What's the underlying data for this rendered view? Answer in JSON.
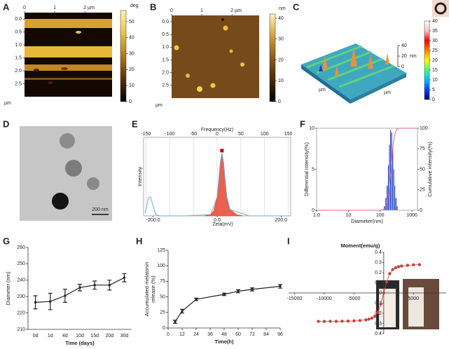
{
  "afm": [
    {
      "panel": "A",
      "xlim": [
        0,
        2.9
      ],
      "ylim": [
        -0.25,
        3.0
      ],
      "xticks": [
        0,
        1,
        {
          "value": 2,
          "label": "2 µm"
        }
      ],
      "yticks": [
        {
          "value": 0,
          "label": "0.0"
        },
        0.5,
        {
          "value": 1,
          "label": "1.0"
        },
        1.5,
        {
          "value": 2,
          "label": "2.0"
        },
        2.5
      ],
      "y_unit": "µm",
      "colorbar": {
        "label": "deg",
        "lim": [
          0,
          57
        ],
        "ticks": [
          0,
          10,
          20,
          30,
          40,
          50
        ],
        "colors": [
          "#000000",
          "#5a3008",
          "#b07818",
          "#e8c040",
          "#fff4b0"
        ]
      }
    },
    {
      "panel": "B",
      "xlim": [
        0,
        2.9
      ],
      "ylim": [
        -0.25,
        3.0
      ],
      "xticks": [
        0,
        1,
        {
          "value": 2,
          "label": "2 µm"
        }
      ],
      "yticks": [
        {
          "value": 0,
          "label": "0.0"
        },
        0.5,
        {
          "value": 1,
          "label": "1.0"
        },
        1.5,
        {
          "value": 2,
          "label": "2.0"
        },
        2.5
      ],
      "y_unit": "µm",
      "colorbar": {
        "label": "nm",
        "lim": [
          0,
          42
        ],
        "ticks": [
          0,
          10,
          20,
          30,
          40
        ],
        "colors": [
          "#000000",
          "#4a2a0a",
          "#8a5a20",
          "#d0a040",
          "#fff4c0"
        ]
      }
    }
  ],
  "surface": {
    "panel": "C",
    "xy_label": "µm",
    "z_label": "nm",
    "z_ticks": [
      0,
      20,
      40
    ],
    "z_lim": [
      0,
      40
    ],
    "colorbar": {
      "lim": [
        0,
        40
      ],
      "ticks": [
        0,
        5,
        10,
        15,
        20,
        25,
        30,
        35,
        40
      ],
      "colors": [
        "#000080",
        "#0040ff",
        "#00c0ff",
        "#40ff80",
        "#ffff00",
        "#ff8000",
        "#ff0000",
        "#ffc0c0",
        "#ffffff"
      ]
    }
  },
  "tem": {
    "panel": "D",
    "scale_bar": "200 nm"
  },
  "chart_data": [
    {
      "type": "area",
      "panel": "E",
      "x2label": "Frequency(Hz)",
      "xlabel": "Zeta(mV)",
      "ylabel": "Intensity",
      "xlim": [
        -230,
        230
      ],
      "xticks": [
        {
          "value": -200,
          "label": "-200.0"
        },
        {
          "value": 0,
          "label": "0.0"
        },
        {
          "value": 200,
          "label": "200.0"
        }
      ],
      "x2lim": [
        -155,
        155
      ],
      "x2ticks": [
        -150,
        -100,
        -50,
        0,
        50,
        100,
        150
      ],
      "ylim": [
        0,
        1.25
      ],
      "grid": true,
      "series": [
        {
          "color": "#e8503a",
          "fill": true,
          "x": [
            -40,
            -20,
            -10,
            0,
            5,
            10,
            15,
            20,
            25,
            30,
            40,
            60,
            80
          ],
          "values": [
            0,
            0.02,
            0.08,
            0.3,
            0.55,
            0.85,
            1.0,
            0.85,
            0.55,
            0.3,
            0.1,
            0.02,
            0
          ]
        },
        {
          "color": "#6fa8dc",
          "fill": false,
          "x": [
            -225,
            -215,
            -208,
            -200,
            -192,
            -180,
            -100,
            -20,
            0,
            10,
            15,
            20,
            30,
            40,
            100,
            225
          ],
          "values": [
            0.05,
            0.28,
            0.3,
            0.15,
            0.02,
            0,
            0,
            0.02,
            0.3,
            0.85,
            1.0,
            0.85,
            0.3,
            0.1,
            0,
            0
          ]
        }
      ]
    },
    {
      "type": "histogram",
      "panel": "F",
      "xlabel": "Diameter(nm)",
      "ylabel": "Differential intensity(%)",
      "y2label": "Cumulative intensity(%)",
      "xlog": true,
      "xlim": [
        1,
        1500
      ],
      "xticks": [
        {
          "value": 1,
          "label": "1.0"
        },
        10,
        100,
        1000
      ],
      "ylim": [
        0,
        10
      ],
      "yticks": [
        0,
        5,
        10
      ],
      "y2lim": [
        0,
        100
      ],
      "y2ticks": [
        0,
        25,
        50,
        75,
        100
      ],
      "bins": [
        130,
        145,
        160,
        175,
        190,
        205,
        220,
        240,
        260,
        280,
        300,
        330,
        360
      ],
      "counts": [
        0.5,
        1.5,
        3,
        5.5,
        8,
        9.8,
        9.5,
        7.5,
        5,
        3,
        1.5,
        0.5
      ],
      "color": "#3050c8",
      "y2color": "#3a8fd0",
      "series": [
        {
          "color": "#e060a0",
          "axis": "y2",
          "x": [
            1,
            100,
            130,
            160,
            190,
            220,
            260,
            300,
            340,
            400,
            1500
          ],
          "values": [
            0,
            0,
            1,
            7,
            22,
            50,
            82,
            95,
            99,
            100,
            100
          ]
        }
      ]
    },
    {
      "type": "errorbar",
      "panel": "G",
      "xlabel": "Time (days)",
      "ylabel": "Diameter (nm)",
      "categories": [
        "0d",
        "1d",
        "4d",
        "10d",
        "15d",
        "20d",
        "30d"
      ],
      "values": [
        226.5,
        227,
        230.5,
        235.5,
        237,
        237,
        241.5
      ],
      "errors": [
        4,
        5,
        4,
        2,
        2.5,
        3,
        2.5
      ],
      "ylim": [
        210,
        260
      ],
      "yticks": [
        210,
        220,
        230,
        240,
        250,
        260
      ],
      "color": "#222222"
    },
    {
      "type": "errorbar",
      "panel": "H",
      "xlabel": "Time(h)",
      "ylabel": [
        "Accumulated melatonin",
        "release (%)"
      ],
      "x": [
        6,
        12,
        24,
        48,
        60,
        72,
        96
      ],
      "values": [
        10,
        27,
        46,
        54,
        59,
        62,
        67
      ],
      "errors": [
        2.5,
        3,
        2,
        2,
        2.5,
        2.5,
        3
      ],
      "xlim": [
        0,
        96
      ],
      "xticks": [
        0,
        12,
        24,
        36,
        48,
        60,
        72,
        84,
        96
      ],
      "ylim": [
        0,
        125
      ],
      "yticks": [
        0,
        25,
        50,
        75,
        100,
        125
      ],
      "color": "#222222"
    },
    {
      "type": "scatter",
      "panel": "I",
      "title": "Moment(emu/g)",
      "xlim": [
        -16000,
        10500
      ],
      "xticks": [
        -15000,
        -10000,
        -5000,
        5000
      ],
      "ylim": [
        -0.4,
        0.4
      ],
      "yticks": [
        0.4,
        0.3,
        0.2,
        0.1,
        0,
        {
          "value": -0.1,
          "label": "0.1"
        },
        {
          "value": -0.2,
          "label": "0.2"
        },
        {
          "value": -0.3,
          "label": "0.3"
        },
        {
          "value": -0.4,
          "label": "0.4"
        }
      ],
      "color": "#c9403a",
      "x": [
        -11000,
        -10000,
        -9000,
        -8000,
        -7000,
        -6000,
        -5000,
        -4000,
        -3000,
        -2500,
        -2000,
        -1500,
        -1000,
        -500,
        0,
        500,
        1000,
        1500,
        2000,
        2500,
        3000,
        4000,
        5000,
        6000
      ],
      "values": [
        -0.28,
        -0.28,
        -0.279,
        -0.279,
        -0.278,
        -0.277,
        -0.275,
        -0.272,
        -0.265,
        -0.258,
        -0.248,
        -0.23,
        -0.19,
        -0.11,
        0,
        0.11,
        0.19,
        0.23,
        0.248,
        0.258,
        0.265,
        0.272,
        0.276,
        0.278
      ]
    }
  ]
}
